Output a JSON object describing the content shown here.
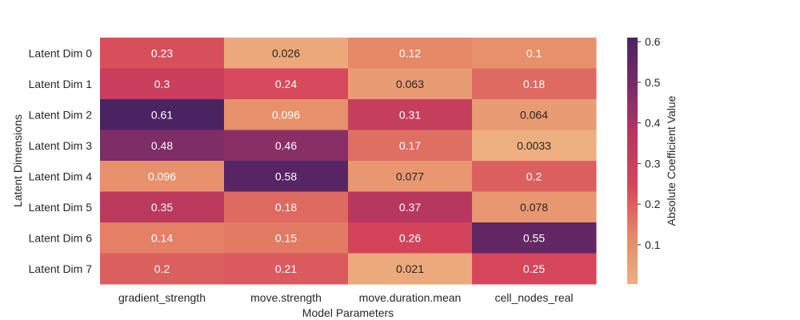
{
  "chart_data": {
    "type": "heatmap",
    "title": "",
    "xlabel": "Model Parameters",
    "ylabel": "Latent Dimensions",
    "colorbar_label": "Absolute Coefficient Value",
    "colorbar_ticks": [
      "0.1",
      "0.2",
      "0.3",
      "0.4",
      "0.5",
      "0.6"
    ],
    "colorbar_range": [
      0.0033,
      0.61
    ],
    "colormap": "flare",
    "x_categories": [
      "gradient_strength",
      "move.strength",
      "move.duration.mean",
      "cell_nodes_real"
    ],
    "y_categories": [
      "Latent Dim 0",
      "Latent Dim 1",
      "Latent Dim 2",
      "Latent Dim 3",
      "Latent Dim 4",
      "Latent Dim 5",
      "Latent Dim 6",
      "Latent Dim 7"
    ],
    "values": [
      [
        0.23,
        0.026,
        0.12,
        0.1
      ],
      [
        0.3,
        0.24,
        0.063,
        0.18
      ],
      [
        0.61,
        0.096,
        0.31,
        0.064
      ],
      [
        0.48,
        0.46,
        0.17,
        0.0033
      ],
      [
        0.096,
        0.58,
        0.077,
        0.2
      ],
      [
        0.35,
        0.18,
        0.37,
        0.078
      ],
      [
        0.14,
        0.15,
        0.26,
        0.55
      ],
      [
        0.2,
        0.21,
        0.021,
        0.25
      ]
    ],
    "labels": [
      [
        "0.23",
        "0.026",
        "0.12",
        "0.1"
      ],
      [
        "0.3",
        "0.24",
        "0.063",
        "0.18"
      ],
      [
        "0.61",
        "0.096",
        "0.31",
        "0.064"
      ],
      [
        "0.48",
        "0.46",
        "0.17",
        "0.0033"
      ],
      [
        "0.096",
        "0.58",
        "0.077",
        "0.2"
      ],
      [
        "0.35",
        "0.18",
        "0.37",
        "0.078"
      ],
      [
        "0.14",
        "0.15",
        "0.26",
        "0.55"
      ],
      [
        "0.2",
        "0.21",
        "0.021",
        "0.25"
      ]
    ],
    "colors": {
      "low": "#edaf80",
      "mid_low": "#e58866",
      "mid": "#d6465b",
      "mid_high": "#b8375f",
      "high_mid": "#7a2c67",
      "high": "#4b2362"
    }
  }
}
